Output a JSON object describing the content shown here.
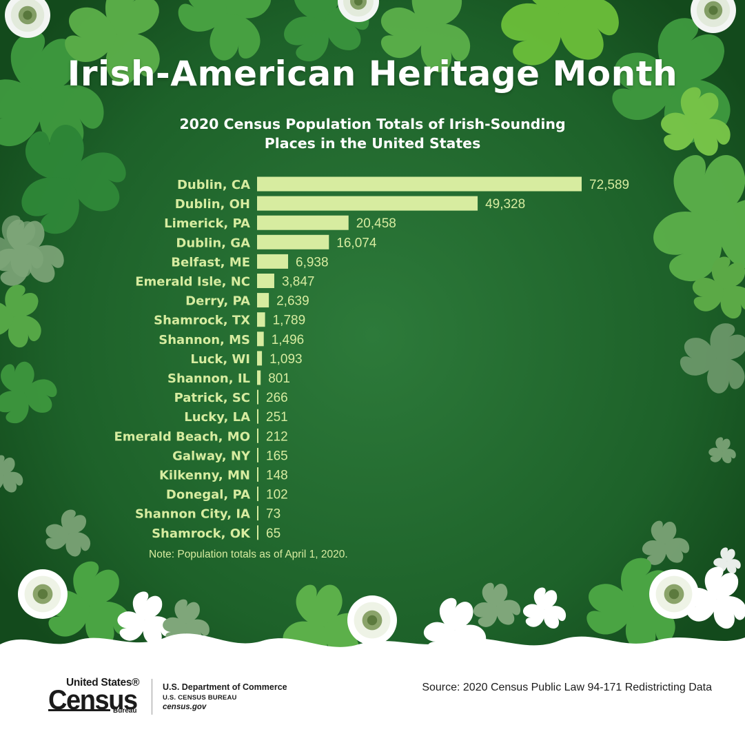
{
  "header": {
    "title": "Irish-American Heritage Month",
    "subtitle_line1": "2020 Census Population Totals of Irish-Sounding",
    "subtitle_line2": "Places in the United States"
  },
  "chart_data": {
    "type": "bar",
    "orientation": "horizontal",
    "title": "2020 Census Population Totals of Irish-Sounding Places in the United States",
    "xlabel": "",
    "ylabel": "",
    "xlim": [
      0,
      72589
    ],
    "grid": false,
    "categories": [
      "Dublin, CA",
      "Dublin, OH",
      "Limerick, PA",
      "Dublin, GA",
      "Belfast, ME",
      "Emerald Isle, NC",
      "Derry, PA",
      "Shamrock, TX",
      "Shannon, MS",
      "Luck, WI",
      "Shannon, IL",
      "Patrick, SC",
      "Lucky, LA",
      "Emerald Beach, MO",
      "Galway, NY",
      "Kilkenny, MN",
      "Donegal, PA",
      "Shannon City, IA",
      "Shamrock, OK"
    ],
    "values": [
      72589,
      49328,
      20458,
      16074,
      6938,
      3847,
      2639,
      1789,
      1496,
      1093,
      801,
      266,
      251,
      212,
      165,
      148,
      102,
      73,
      65
    ],
    "value_labels": [
      "72,589",
      "49,328",
      "20,458",
      "16,074",
      "6,938",
      "3,847",
      "2,639",
      "1,789",
      "1,496",
      "1,093",
      "801",
      "266",
      "251",
      "212",
      "165",
      "148",
      "102",
      "73",
      "65"
    ],
    "bar_color": "#d7eca0",
    "note": "Note: Population totals as of April 1, 2020."
  },
  "colors": {
    "background_green": "#1f6a2d",
    "label_color": "#d7eca0",
    "title_color": "#ffffff"
  },
  "footer": {
    "logo_line1": "United States®",
    "logo_line2": "Census",
    "logo_line3": "Bureau",
    "dept_line1": "U.S. Department of Commerce",
    "dept_line2": "U.S. CENSUS BUREAU",
    "dept_line3": "census.gov",
    "source": "Source: 2020 Census Public Law 94-171 Redistricting Data"
  }
}
